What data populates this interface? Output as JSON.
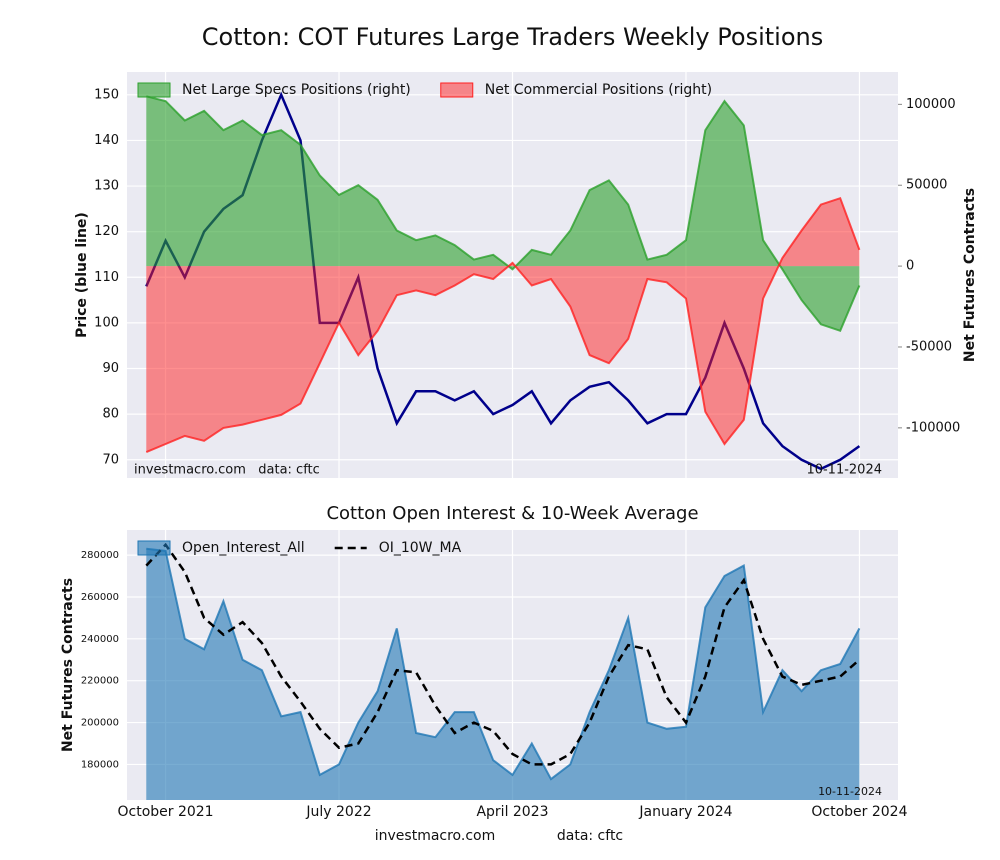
{
  "chart_data": [
    {
      "type": "line",
      "title": "Cotton: COT Futures Large Traders Weekly Positions",
      "ylabel": "Price (blue line)",
      "y2label": "Net Futures Contracts",
      "x": [
        "2021-09",
        "2021-10",
        "2021-11",
        "2021-12",
        "2022-01",
        "2022-02",
        "2022-03",
        "2022-04",
        "2022-05",
        "2022-06",
        "2022-07",
        "2022-08",
        "2022-09",
        "2022-10",
        "2022-11",
        "2022-12",
        "2023-01",
        "2023-02",
        "2023-03",
        "2023-04",
        "2023-05",
        "2023-06",
        "2023-07",
        "2023-08",
        "2023-09",
        "2023-10",
        "2023-11",
        "2023-12",
        "2024-01",
        "2024-02",
        "2024-03",
        "2024-04",
        "2024-05",
        "2024-06",
        "2024-07",
        "2024-08",
        "2024-09",
        "2024-10"
      ],
      "xlim": [
        "2021-08",
        "2024-12"
      ],
      "ylim": [
        66,
        155
      ],
      "yticks": [
        70,
        80,
        90,
        100,
        110,
        120,
        130,
        140,
        150
      ],
      "y2lim": [
        -131000,
        120000
      ],
      "y2ticks": [
        -100000,
        -50000,
        0,
        50000,
        100000
      ],
      "grid": true,
      "legend": "upper left",
      "series": [
        {
          "type": "line",
          "color": "#00008b",
          "values": [
            108,
            118,
            110,
            120,
            125,
            128,
            140,
            150,
            140,
            100,
            100,
            110,
            90,
            78,
            85,
            85,
            83,
            85,
            80,
            82,
            85,
            78,
            83,
            86,
            87,
            83,
            78,
            80,
            80,
            88,
            100,
            90,
            78,
            73,
            70,
            68,
            70,
            73
          ]
        },
        {
          "type": "area",
          "name": "Net Large Specs Positions (right)",
          "axis": "y2",
          "color": "#2ca02c",
          "alpha": 0.6,
          "values": [
            105000,
            102000,
            90000,
            96000,
            84000,
            90000,
            81000,
            84000,
            75000,
            56000,
            44000,
            50000,
            41000,
            22000,
            16000,
            19000,
            13000,
            4000,
            7000,
            -2000,
            10000,
            7000,
            22000,
            47000,
            53000,
            38000,
            4000,
            7000,
            16000,
            84000,
            102000,
            87000,
            16000,
            -2000,
            -21000,
            -36000,
            -40000,
            -12000
          ]
        },
        {
          "type": "area",
          "name": "Net Commercial Positions (right)",
          "axis": "y2",
          "color": "#ff2020",
          "alpha": 0.5,
          "values": [
            -115000,
            -110000,
            -105000,
            -108000,
            -100000,
            -98000,
            -95000,
            -92000,
            -85000,
            -60000,
            -35000,
            -55000,
            -40000,
            -18000,
            -15000,
            -18000,
            -12000,
            -5000,
            -8000,
            2000,
            -12000,
            -8000,
            -25000,
            -55000,
            -60000,
            -45000,
            -8000,
            -10000,
            -20000,
            -90000,
            -110000,
            -95000,
            -20000,
            5000,
            22000,
            38000,
            42000,
            10000
          ]
        }
      ],
      "annotations": [
        {
          "text": "investmacro.com   data: cftc",
          "position": "lower left"
        },
        {
          "text": "10-11-2024",
          "position": "lower right"
        }
      ]
    },
    {
      "type": "line",
      "title": "Cotton Open Interest & 10-Week Average",
      "ylabel": "Net Futures Contracts",
      "x": [
        "2021-09",
        "2021-10",
        "2021-11",
        "2021-12",
        "2022-01",
        "2022-02",
        "2022-03",
        "2022-04",
        "2022-05",
        "2022-06",
        "2022-07",
        "2022-08",
        "2022-09",
        "2022-10",
        "2022-11",
        "2022-12",
        "2023-01",
        "2023-02",
        "2023-03",
        "2023-04",
        "2023-05",
        "2023-06",
        "2023-07",
        "2023-08",
        "2023-09",
        "2023-10",
        "2023-11",
        "2023-12",
        "2024-01",
        "2024-02",
        "2024-03",
        "2024-04",
        "2024-05",
        "2024-06",
        "2024-07",
        "2024-08",
        "2024-09",
        "2024-10"
      ],
      "xlim": [
        "2021-08",
        "2024-12"
      ],
      "xticks": [
        {
          "value": "2021-10",
          "label": "October 2021"
        },
        {
          "value": "2022-07",
          "label": "July 2022"
        },
        {
          "value": "2023-04",
          "label": "April 2023"
        },
        {
          "value": "2024-01",
          "label": "January 2024"
        },
        {
          "value": "2024-10",
          "label": "October 2024"
        }
      ],
      "ylim": [
        163000,
        292000
      ],
      "yticks": [
        180000,
        200000,
        220000,
        240000,
        260000,
        280000
      ],
      "grid": true,
      "legend": "upper left",
      "series": [
        {
          "type": "area",
          "name": "Open_Interest_All",
          "color": "#1f77b4",
          "alpha": 0.6,
          "values": [
            283000,
            282000,
            240000,
            235000,
            258000,
            230000,
            225000,
            203000,
            205000,
            175000,
            180000,
            200000,
            215000,
            245000,
            195000,
            193000,
            205000,
            205000,
            182000,
            175000,
            190000,
            173000,
            180000,
            205000,
            225000,
            250000,
            200000,
            197000,
            198000,
            255000,
            270000,
            275000,
            205000,
            225000,
            215000,
            225000,
            228000,
            245000
          ]
        },
        {
          "type": "line",
          "name": "OI_10W_MA",
          "color": "#000000",
          "linestyle": "dashed",
          "values": [
            275000,
            285000,
            272000,
            250000,
            242000,
            248000,
            238000,
            222000,
            210000,
            197000,
            188000,
            190000,
            205000,
            225000,
            224000,
            208000,
            195000,
            200000,
            196000,
            185000,
            180000,
            180000,
            185000,
            200000,
            222000,
            237000,
            235000,
            212000,
            200000,
            222000,
            255000,
            268000,
            240000,
            222000,
            218000,
            220000,
            222000,
            230000
          ]
        }
      ],
      "annotations": [
        {
          "text": "10-11-2024",
          "position": "lower right"
        }
      ]
    }
  ],
  "footer": [
    "investmacro.com",
    "data: cftc"
  ]
}
